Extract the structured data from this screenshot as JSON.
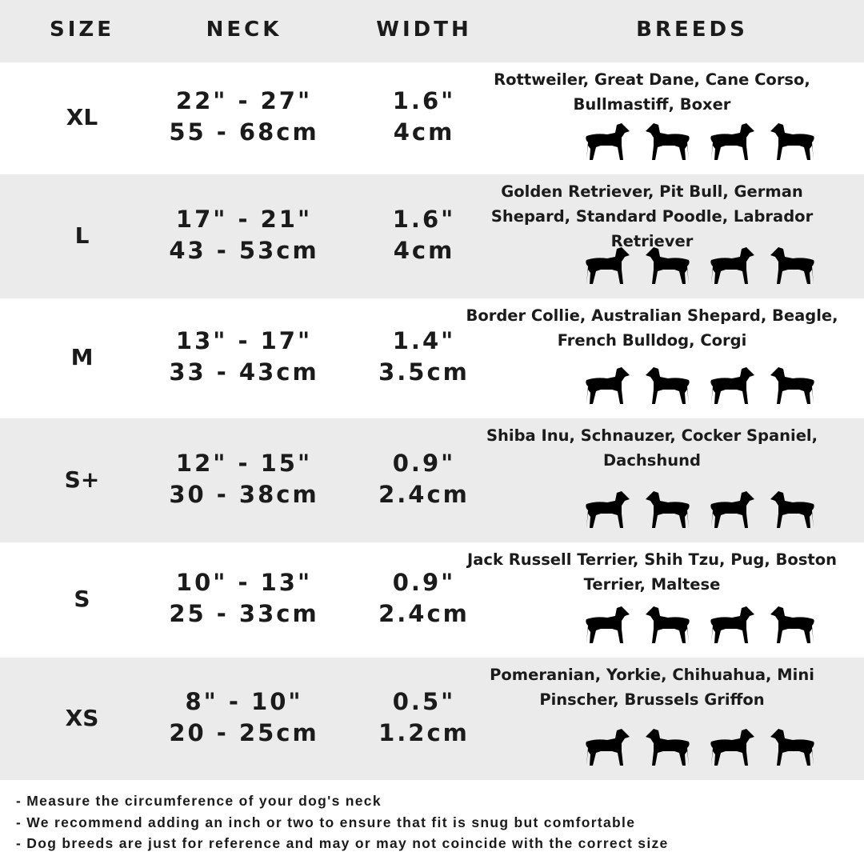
{
  "header": {
    "size": "SIZE",
    "neck": "NECK",
    "width": "WIDTH",
    "breeds": "BREEDS"
  },
  "colors": {
    "band": "#ebebec",
    "text": "#1b1b1b"
  },
  "rows": [
    {
      "size": "XL",
      "neck_in": "22\" - 27\"",
      "neck_cm": "55 - 68cm",
      "width_in": "1.6\"",
      "width_cm": "4cm",
      "breeds": "Rottweiler, Great Dane, Cane Corso, Bullmastiff, Boxer",
      "icons": [
        "rottweiler-silhouette-icon",
        "great-dane-silhouette-icon",
        "cane-corso-silhouette-icon",
        "bullmastiff-silhouette-icon"
      ]
    },
    {
      "size": "L",
      "neck_in": "17\" - 21\"",
      "neck_cm": "43 - 53cm",
      "width_in": "1.6\"",
      "width_cm": "4cm",
      "breeds": "Golden Retriever, Pit Bull, German Shepard, Standard Poodle, Labrador Retriever",
      "icons": [
        "golden-retriever-silhouette-icon",
        "labrador-silhouette-icon",
        "poodle-silhouette-icon",
        "german-shepherd-silhouette-icon"
      ]
    },
    {
      "size": "M",
      "neck_in": "13\" - 17\"",
      "neck_cm": "33 - 43cm",
      "width_in": "1.4\"",
      "width_cm": "3.5cm",
      "breeds": "Border Collie, Australian Shepard, Beagle, French Bulldog, Corgi",
      "icons": [
        "australian-shepherd-silhouette-icon",
        "beagle-silhouette-icon",
        "french-bulldog-silhouette-icon",
        "corgi-silhouette-icon"
      ]
    },
    {
      "size": "S+",
      "neck_in": "12\" - 15\"",
      "neck_cm": "30 - 38cm",
      "width_in": "0.9\"",
      "width_cm": "2.4cm",
      "breeds": "Shiba Inu, Schnauzer, Cocker Spaniel, Dachshund",
      "icons": [
        "shiba-inu-silhouette-icon",
        "schnauzer-silhouette-icon",
        "cocker-spaniel-silhouette-icon",
        "dachshund-silhouette-icon"
      ]
    },
    {
      "size": "S",
      "neck_in": "10\" - 13\"",
      "neck_cm": "25 - 33cm",
      "width_in": "0.9\"",
      "width_cm": "2.4cm",
      "breeds": "Jack Russell Terrier, Shih Tzu, Pug, Boston Terrier, Maltese",
      "icons": [
        "jack-russell-silhouette-icon",
        "shih-tzu-silhouette-icon",
        "pug-silhouette-icon",
        "maltese-silhouette-icon"
      ]
    },
    {
      "size": "XS",
      "neck_in": "8\" - 10\"",
      "neck_cm": "20 - 25cm",
      "width_in": "0.5\"",
      "width_cm": "1.2cm",
      "breeds": "Pomeranian, Yorkie, Chihuahua, Mini Pinscher, Brussels Griffon",
      "icons": [
        "pomeranian-silhouette-icon",
        "yorkie-silhouette-icon",
        "chihuahua-silhouette-icon",
        "mini-pinscher-silhouette-icon"
      ]
    }
  ],
  "notes": [
    "- Measure the circumference of your dog's neck",
    "- We recommend adding an inch or two to ensure that fit is snug but comfortable",
    "- Dog breeds are just for reference and may or may not coincide with the correct size"
  ]
}
